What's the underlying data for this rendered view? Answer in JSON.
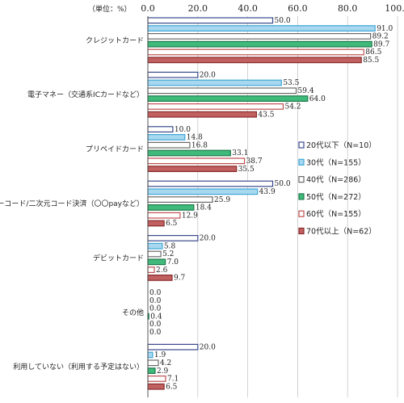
{
  "unit_label": "（単位：%）",
  "chart_data": {
    "type": "bar",
    "orientation": "horizontal",
    "xlim": [
      0,
      100
    ],
    "x_ticks": [
      "0.0",
      "20.0",
      "40.0",
      "60.0",
      "80.0",
      "100.0"
    ],
    "grid": true,
    "legend_position": "right",
    "categories": [
      "クレジットカード",
      "電子マネー（交通系ICカードなど）",
      "プリペイドカード",
      "バーコード/二次元コード決済（〇〇payなど）",
      "デビットカード",
      "その他",
      "利用していない（利用する予定はない）"
    ],
    "series": [
      {
        "name": "20代以下（N=10）",
        "color": "#3a4a8c",
        "fill": "#ffffff",
        "values": [
          50.0,
          20.0,
          10.0,
          50.0,
          20.0,
          0.0,
          20.0
        ],
        "labels": [
          "50.0",
          "20.0",
          "10.0",
          "50.0",
          "20.0",
          "0.0",
          "20.0"
        ]
      },
      {
        "name": "30代（N=155）",
        "color": "#3fa7d6",
        "fill": "#a8d8f0",
        "values": [
          91.0,
          53.5,
          14.8,
          43.9,
          5.8,
          0.0,
          1.9
        ],
        "labels": [
          "91.0",
          "53.5",
          "14.8",
          "43.9",
          "5.8",
          "0.0",
          "1.9"
        ]
      },
      {
        "name": "40代（N=286）",
        "color": "#6a6a6a",
        "fill": "#ffffff",
        "values": [
          89.2,
          59.4,
          16.8,
          25.9,
          5.2,
          0.0,
          4.2
        ],
        "labels": [
          "89.2",
          "59.4",
          "16.8",
          "25.9",
          "5.2",
          "0.0",
          "4.2"
        ]
      },
      {
        "name": "50代（N=272）",
        "color": "#1f7a4a",
        "fill": "#3fba7a",
        "values": [
          89.7,
          64.0,
          33.1,
          18.4,
          7.0,
          0.4,
          2.9
        ],
        "labels": [
          "89.7",
          "64.0",
          "33.1",
          "18.4",
          "7.0",
          "0.4",
          "2.9"
        ]
      },
      {
        "name": "60代（N=155）",
        "color": "#c05050",
        "fill": "#ffffff",
        "values": [
          86.5,
          54.2,
          38.7,
          12.9,
          2.6,
          0.0,
          7.1
        ],
        "labels": [
          "86.5",
          "54.2",
          "38.7",
          "12.9",
          "2.6",
          "0.0",
          "7.1"
        ]
      },
      {
        "name": "70代以上（N=62）",
        "color": "#8a2a2a",
        "fill": "#c06060",
        "values": [
          85.5,
          43.5,
          35.5,
          6.5,
          9.7,
          0.0,
          6.5
        ],
        "labels": [
          "85.5",
          "43.5",
          "35.5",
          "6.5",
          "9.7",
          "0.0",
          "6.5"
        ]
      }
    ]
  }
}
